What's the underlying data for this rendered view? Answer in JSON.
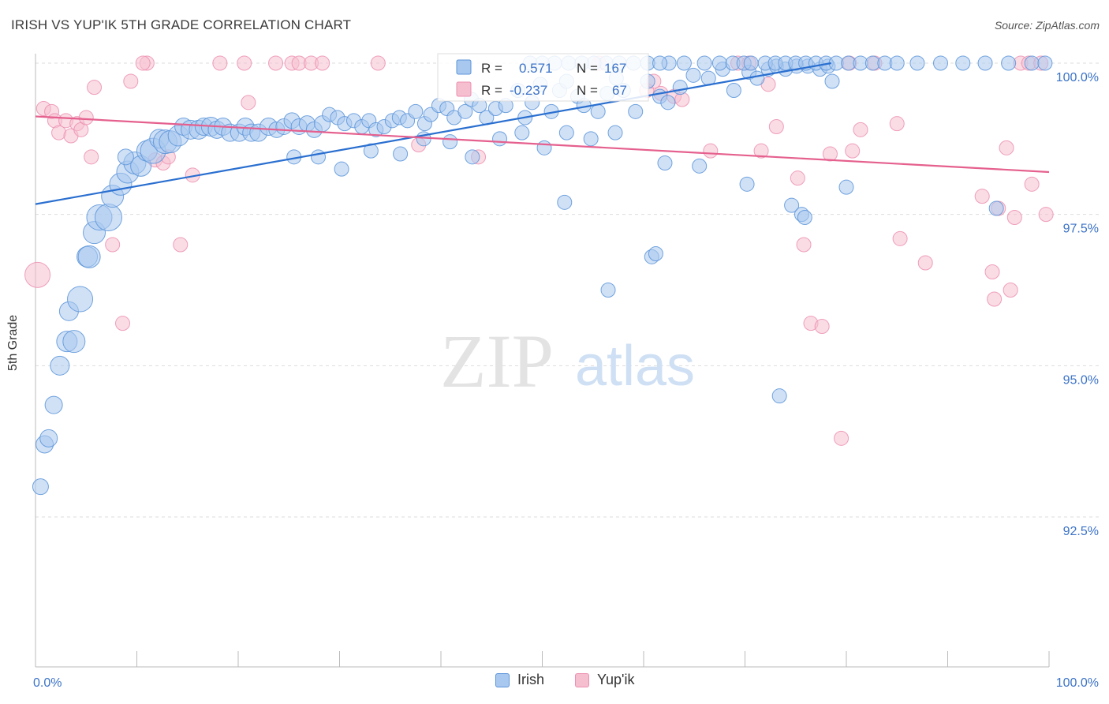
{
  "title": "IRISH VS YUP'IK 5TH GRADE CORRELATION CHART",
  "source": "Source: ZipAtlas.com",
  "watermark": {
    "zip": "ZIP",
    "atlas": "atlas"
  },
  "colors": {
    "irish_fill": "#a9c8ef",
    "irish_stroke": "#5b94d9",
    "irish_line": "#2a6fd0",
    "yupik_fill": "#f6bfd0",
    "yupik_stroke": "#ec8fb0",
    "yupik_line": "#e5608e",
    "tick_text": "#3c73c7",
    "grid": "#dddddd"
  },
  "legend_top": {
    "rows": [
      {
        "r_label": "R =",
        "r_value": "0.571",
        "n_label": "N =",
        "n_value": "167"
      },
      {
        "r_label": "R =",
        "r_value": "-0.237",
        "n_label": "N =",
        "n_value": "67"
      }
    ]
  },
  "legend_bottom": [
    {
      "label": "Irish"
    },
    {
      "label": "Yup'ik"
    }
  ],
  "chart_data": {
    "type": "scatter",
    "title": "IRISH VS YUP'IK 5TH GRADE CORRELATION CHART",
    "xlabel": "",
    "ylabel": "5th Grade",
    "xlim": [
      0,
      100
    ],
    "ylim": [
      90.0,
      100.2
    ],
    "x_tick_labels": [
      "0.0%",
      "100.0%"
    ],
    "y_ticks": [
      {
        "value": 100.0,
        "label": "100.0%"
      },
      {
        "value": 97.5,
        "label": "97.5%"
      },
      {
        "value": 95.0,
        "label": "95.0%"
      },
      {
        "value": 92.5,
        "label": "92.5%"
      }
    ],
    "grid": true,
    "legend_position": "top-center",
    "series": [
      {
        "name": "Irish",
        "r": 0.571,
        "n": 167,
        "trend": {
          "x": [
            0,
            78.5
          ],
          "y": [
            97.67,
            100.0
          ]
        },
        "points": [
          [
            0.5,
            93.0,
            10
          ],
          [
            0.9,
            93.7,
            11
          ],
          [
            1.3,
            93.8,
            11
          ],
          [
            1.8,
            94.35,
            11
          ],
          [
            2.4,
            95.0,
            12
          ],
          [
            3.1,
            95.4,
            13
          ],
          [
            3.8,
            95.4,
            14
          ],
          [
            3.3,
            95.9,
            12
          ],
          [
            4.4,
            96.1,
            16
          ],
          [
            5.1,
            96.8,
            13
          ],
          [
            5.3,
            96.8,
            14
          ],
          [
            5.8,
            97.2,
            14
          ],
          [
            6.3,
            97.45,
            16
          ],
          [
            7.2,
            97.45,
            17
          ],
          [
            7.6,
            97.8,
            14
          ],
          [
            8.4,
            98.0,
            14
          ],
          [
            9.1,
            98.2,
            14
          ],
          [
            9.8,
            98.35,
            14
          ],
          [
            10.4,
            98.3,
            13
          ],
          [
            11.0,
            98.55,
            13
          ],
          [
            11.6,
            98.55,
            16
          ],
          [
            12.2,
            98.75,
            12
          ],
          [
            12.8,
            98.7,
            15
          ],
          [
            13.3,
            98.7,
            14
          ],
          [
            14.1,
            98.8,
            13
          ],
          [
            14.6,
            98.95,
            11
          ],
          [
            15.3,
            98.9,
            12
          ],
          [
            16.1,
            98.9,
            12
          ],
          [
            16.6,
            98.95,
            11
          ],
          [
            17.3,
            98.95,
            12
          ],
          [
            17.9,
            98.9,
            11
          ],
          [
            18.5,
            98.95,
            11
          ],
          [
            19.2,
            98.85,
            11
          ],
          [
            20.1,
            98.85,
            11
          ],
          [
            20.7,
            98.95,
            11
          ],
          [
            21.3,
            98.85,
            11
          ],
          [
            22.0,
            98.85,
            11
          ],
          [
            23.0,
            98.95,
            11
          ],
          [
            23.8,
            98.9,
            10
          ],
          [
            24.5,
            98.95,
            10
          ],
          [
            25.3,
            99.05,
            10
          ],
          [
            26.0,
            98.95,
            10
          ],
          [
            26.8,
            99.0,
            10
          ],
          [
            27.5,
            98.9,
            10
          ],
          [
            28.3,
            99.0,
            10
          ],
          [
            29.0,
            99.15,
            9
          ],
          [
            29.8,
            99.1,
            9
          ],
          [
            30.5,
            99.0,
            9
          ],
          [
            31.4,
            99.05,
            9
          ],
          [
            32.2,
            98.95,
            9
          ],
          [
            32.9,
            99.05,
            9
          ],
          [
            33.6,
            98.9,
            9
          ],
          [
            34.4,
            98.95,
            9
          ],
          [
            35.2,
            99.05,
            9
          ],
          [
            35.9,
            99.1,
            9
          ],
          [
            36.7,
            99.05,
            9
          ],
          [
            37.5,
            99.2,
            9
          ],
          [
            38.4,
            99.0,
            9
          ],
          [
            39.0,
            99.15,
            9
          ],
          [
            39.8,
            99.3,
            9
          ],
          [
            40.6,
            99.25,
            9
          ],
          [
            41.3,
            99.1,
            9
          ],
          [
            42.4,
            99.2,
            9
          ],
          [
            43.0,
            99.4,
            9
          ],
          [
            43.8,
            99.3,
            9
          ],
          [
            44.5,
            99.1,
            9
          ],
          [
            45.4,
            99.25,
            9
          ],
          [
            46.4,
            99.3,
            9
          ],
          [
            47.6,
            99.55,
            9
          ],
          [
            48.3,
            99.1,
            9
          ],
          [
            49.0,
            99.35,
            9
          ],
          [
            49.8,
            99.65,
            9
          ],
          [
            50.9,
            99.2,
            9
          ],
          [
            51.7,
            99.55,
            9
          ],
          [
            52.4,
            99.7,
            9
          ],
          [
            53.5,
            99.45,
            9
          ],
          [
            54.1,
            99.3,
            9
          ],
          [
            55.5,
            99.2,
            9
          ],
          [
            56.4,
            99.5,
            9
          ],
          [
            57.3,
            99.75,
            9
          ],
          [
            58.0,
            99.55,
            9
          ],
          [
            59.2,
            99.2,
            9
          ],
          [
            60.4,
            99.7,
            9
          ],
          [
            61.6,
            99.45,
            9
          ],
          [
            62.4,
            99.35,
            9
          ],
          [
            63.6,
            99.6,
            9
          ],
          [
            64.9,
            99.8,
            9
          ],
          [
            66.4,
            99.75,
            9
          ],
          [
            67.8,
            99.9,
            9
          ],
          [
            68.9,
            99.55,
            9
          ],
          [
            70.4,
            99.85,
            9
          ],
          [
            71.2,
            99.75,
            9
          ],
          [
            72.3,
            99.9,
            9
          ],
          [
            73.1,
            99.95,
            9
          ],
          [
            74.0,
            99.9,
            9
          ],
          [
            75.1,
            99.95,
            9
          ],
          [
            76.2,
            99.95,
            9
          ],
          [
            77.4,
            99.9,
            9
          ],
          [
            78.2,
            99.95,
            9
          ],
          [
            8.9,
            98.45,
            10
          ],
          [
            25.5,
            98.45,
            9
          ],
          [
            27.9,
            98.45,
            9
          ],
          [
            30.2,
            98.25,
            9
          ],
          [
            33.1,
            98.55,
            9
          ],
          [
            36.0,
            98.5,
            9
          ],
          [
            38.3,
            98.75,
            9
          ],
          [
            40.9,
            98.7,
            9
          ],
          [
            43.1,
            98.45,
            9
          ],
          [
            45.8,
            98.75,
            9
          ],
          [
            48.0,
            98.85,
            9
          ],
          [
            50.2,
            98.6,
            9
          ],
          [
            52.4,
            98.85,
            9
          ],
          [
            54.8,
            98.75,
            9
          ],
          [
            57.2,
            98.85,
            9
          ],
          [
            62.1,
            98.35,
            9
          ],
          [
            65.5,
            98.3,
            9
          ],
          [
            70.2,
            98.0,
            9
          ],
          [
            74.6,
            97.65,
            9
          ],
          [
            80.0,
            97.95,
            9
          ],
          [
            52.2,
            97.7,
            9
          ],
          [
            60.8,
            96.8,
            9
          ],
          [
            61.2,
            96.85,
            9
          ],
          [
            56.5,
            96.25,
            9
          ],
          [
            75.6,
            97.5,
            9
          ],
          [
            75.9,
            97.45,
            9
          ],
          [
            94.8,
            97.6,
            9
          ],
          [
            73.4,
            94.5,
            9
          ],
          [
            78.6,
            99.7,
            9
          ],
          [
            62.5,
            100.0,
            9
          ],
          [
            64.0,
            100.0,
            9
          ],
          [
            66.0,
            100.0,
            9
          ],
          [
            67.5,
            100.0,
            9
          ],
          [
            68.8,
            100.0,
            9
          ],
          [
            69.9,
            100.0,
            9
          ],
          [
            70.6,
            100.0,
            9
          ],
          [
            72.0,
            100.0,
            9
          ],
          [
            73.0,
            100.0,
            9
          ],
          [
            74.0,
            100.0,
            9
          ],
          [
            75.0,
            100.0,
            9
          ],
          [
            76.0,
            100.0,
            9
          ],
          [
            77.0,
            100.0,
            9
          ],
          [
            78.0,
            100.0,
            9
          ],
          [
            79.0,
            100.0,
            9
          ],
          [
            80.2,
            100.0,
            9
          ],
          [
            81.4,
            100.0,
            9
          ],
          [
            82.6,
            100.0,
            9
          ],
          [
            83.8,
            100.0,
            9
          ],
          [
            85.0,
            100.0,
            9
          ],
          [
            87.0,
            100.0,
            9
          ],
          [
            89.3,
            100.0,
            9
          ],
          [
            91.5,
            100.0,
            9
          ],
          [
            93.7,
            100.0,
            9
          ],
          [
            96.0,
            100.0,
            9
          ],
          [
            98.3,
            100.0,
            9
          ],
          [
            99.6,
            100.0,
            9
          ],
          [
            59.0,
            100.0,
            9
          ],
          [
            60.4,
            100.0,
            9
          ],
          [
            61.6,
            100.0,
            9
          ],
          [
            56.3,
            100.0,
            9
          ],
          [
            57.6,
            100.0,
            9
          ],
          [
            55.1,
            100.0,
            9
          ],
          [
            53.9,
            100.0,
            9
          ],
          [
            52.6,
            100.0,
            9
          ],
          [
            51.2,
            100.0,
            9
          ],
          [
            50.0,
            100.0,
            9
          ],
          [
            48.8,
            100.0,
            9
          ]
        ]
      },
      {
        "name": "Yup'ik",
        "r": -0.237,
        "n": 67,
        "trend": {
          "x": [
            0,
            100
          ],
          "y": [
            99.12,
            98.2
          ]
        },
        "points": [
          [
            0.2,
            96.5,
            16
          ],
          [
            0.8,
            99.25,
            9
          ],
          [
            1.6,
            99.2,
            9
          ],
          [
            1.9,
            99.05,
            9
          ],
          [
            2.3,
            98.85,
            9
          ],
          [
            3.0,
            99.05,
            9
          ],
          [
            3.5,
            98.8,
            9
          ],
          [
            4.1,
            99.0,
            9
          ],
          [
            4.5,
            98.9,
            9
          ],
          [
            5.0,
            99.1,
            9
          ],
          [
            5.5,
            98.45,
            9
          ],
          [
            5.8,
            99.6,
            9
          ],
          [
            7.6,
            97.0,
            9
          ],
          [
            8.6,
            95.7,
            9
          ],
          [
            9.4,
            99.7,
            9
          ],
          [
            11.0,
            100.0,
            9
          ],
          [
            10.6,
            100.0,
            9
          ],
          [
            11.8,
            98.4,
            9
          ],
          [
            12.6,
            98.35,
            9
          ],
          [
            13.1,
            98.45,
            9
          ],
          [
            15.5,
            98.15,
            9
          ],
          [
            14.3,
            97.0,
            9
          ],
          [
            18.2,
            100.0,
            9
          ],
          [
            20.6,
            100.0,
            9
          ],
          [
            21.0,
            99.35,
            9
          ],
          [
            23.7,
            100.0,
            9
          ],
          [
            25.3,
            100.0,
            9
          ],
          [
            26.0,
            100.0,
            9
          ],
          [
            27.2,
            100.0,
            9
          ],
          [
            28.3,
            100.0,
            9
          ],
          [
            33.8,
            100.0,
            9
          ],
          [
            37.8,
            98.65,
            9
          ],
          [
            43.7,
            98.45,
            9
          ],
          [
            55.6,
            100.0,
            9
          ],
          [
            60.3,
            99.55,
            9
          ],
          [
            61.0,
            99.7,
            9
          ],
          [
            61.7,
            99.5,
            9
          ],
          [
            63.0,
            99.45,
            9
          ],
          [
            63.8,
            99.4,
            9
          ],
          [
            66.6,
            98.55,
            9
          ],
          [
            69.3,
            100.0,
            9
          ],
          [
            70.4,
            100.0,
            9
          ],
          [
            71.6,
            98.55,
            9
          ],
          [
            72.3,
            99.65,
            9
          ],
          [
            73.1,
            98.95,
            9
          ],
          [
            75.2,
            98.1,
            9
          ],
          [
            75.8,
            97.0,
            9
          ],
          [
            76.5,
            95.7,
            9
          ],
          [
            77.6,
            95.65,
            9
          ],
          [
            78.4,
            98.5,
            9
          ],
          [
            79.5,
            93.8,
            9
          ],
          [
            80.3,
            100.0,
            9
          ],
          [
            80.6,
            98.55,
            9
          ],
          [
            81.4,
            98.9,
            9
          ],
          [
            82.8,
            100.0,
            9
          ],
          [
            85.0,
            99.0,
            9
          ],
          [
            85.3,
            97.1,
            9
          ],
          [
            87.8,
            96.7,
            9
          ],
          [
            93.4,
            97.8,
            9
          ],
          [
            94.4,
            96.55,
            9
          ],
          [
            94.6,
            96.1,
            9
          ],
          [
            95.0,
            97.6,
            9
          ],
          [
            95.8,
            98.6,
            9
          ],
          [
            96.2,
            96.25,
            9
          ],
          [
            96.6,
            97.45,
            9
          ],
          [
            97.2,
            100.0,
            9
          ],
          [
            98.0,
            100.0,
            9
          ],
          [
            98.3,
            98.0,
            9
          ],
          [
            99.2,
            100.0,
            9
          ],
          [
            99.7,
            97.5,
            9
          ]
        ]
      }
    ]
  }
}
